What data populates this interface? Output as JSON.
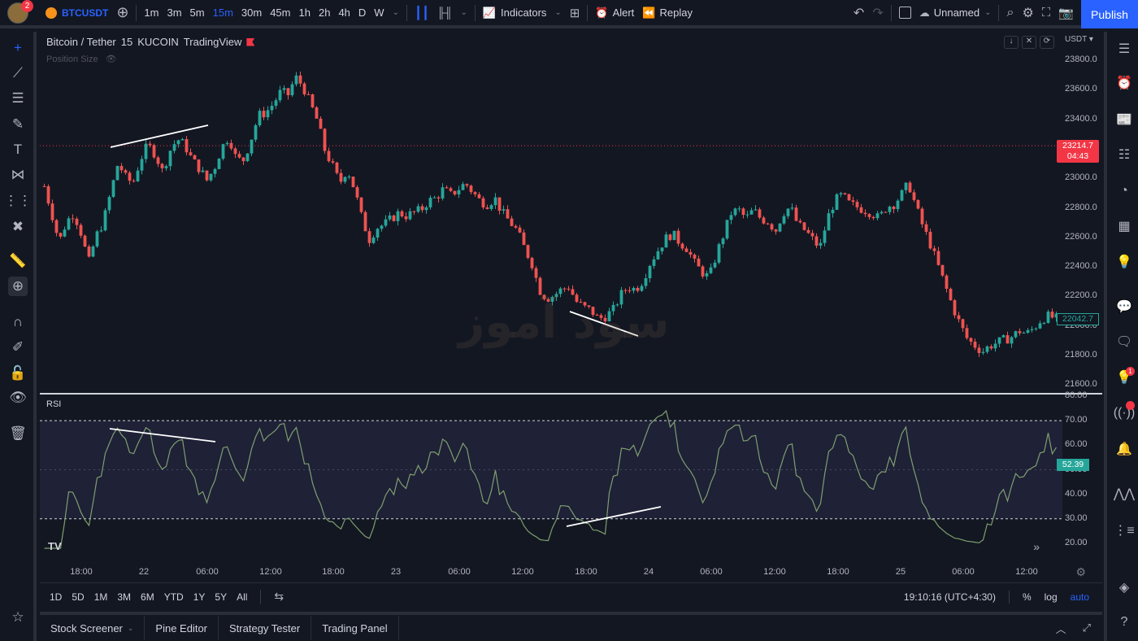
{
  "topbar": {
    "avatar_badge": "2",
    "symbol": "BTCUSDT",
    "intervals": [
      "1m",
      "3m",
      "5m",
      "15m",
      "30m",
      "45m",
      "1h",
      "2h",
      "4h",
      "D",
      "W"
    ],
    "active_interval": "15m",
    "indicators_label": "Indicators",
    "alert_label": "Alert",
    "replay_label": "Replay",
    "layout_name": "Unnamed",
    "publish_label": "Publish"
  },
  "legend": {
    "pair": "Bitcoin / Tether",
    "interval": "15",
    "exchange": "KUCOIN",
    "source": "TradingView",
    "position_size": "Position Size"
  },
  "currency": "USDT",
  "watermark": "سود آموز",
  "price_axis": [
    "23800.0",
    "23600.0",
    "23400.0",
    "23200.0",
    "23000.0",
    "22800.0",
    "22600.0",
    "22400.0",
    "22200.0",
    "22000.0",
    "21800.0",
    "21600.0"
  ],
  "last_price": {
    "value": "23214.7",
    "countdown": "04:43",
    "color": "#f23645"
  },
  "cross_price": {
    "value": "22042.7",
    "color": "#26a69a"
  },
  "rsi": {
    "label": "RSI",
    "axis": [
      "80.00",
      "70.00",
      "60.00",
      "50.00",
      "40.00",
      "30.00",
      "20.00"
    ],
    "value": "52.39",
    "upper": 70,
    "lower": 30
  },
  "time_axis": [
    "18:00",
    "22",
    "06:00",
    "12:00",
    "18:00",
    "23",
    "06:00",
    "12:00",
    "18:00",
    "24",
    "06:00",
    "12:00",
    "18:00",
    "25",
    "06:00",
    "12:00"
  ],
  "range_buttons": [
    "1D",
    "5D",
    "1M",
    "3M",
    "6M",
    "YTD",
    "1Y",
    "5Y",
    "All"
  ],
  "clock": "19:10:16 (UTC+4:30)",
  "scale_options": {
    "percent": "%",
    "log": "log",
    "auto": "auto"
  },
  "bottom_tabs": [
    "Stock Screener",
    "Pine Editor",
    "Strategy Tester",
    "Trading Panel"
  ],
  "right_badge": "1",
  "colors": {
    "up": "#26a69a",
    "down": "#ef5350",
    "rsi_line": "#7e9f6e",
    "rsi_band": "#2a2948",
    "accent": "#2962ff"
  },
  "chart_data": {
    "type": "candlestick",
    "ylim": [
      21600,
      23800
    ],
    "rsi_ylim": [
      15,
      80
    ],
    "close_series": [
      22940,
      22760,
      22560,
      22700,
      22760,
      22620,
      22420,
      22600,
      22700,
      22900,
      23100,
      23000,
      22960,
      23120,
      23220,
      23160,
      23040,
      23180,
      23260,
      23220,
      23120,
      23060,
      22980,
      23060,
      23200,
      23280,
      23120,
      23120,
      23260,
      23420,
      23440,
      23500,
      23580,
      23560,
      23680,
      23620,
      23500,
      23380,
      23180,
      23080,
      22960,
      23060,
      22920,
      22720,
      22580,
      22660,
      22680,
      22720,
      22760,
      22740,
      22760,
      22780,
      22840,
      22860,
      22920,
      22880,
      22920,
      22960,
      22900,
      22840,
      22820,
      22860,
      22760,
      22700,
      22640,
      22520,
      22420,
      22240,
      22180,
      22200,
      22240,
      22260,
      22160,
      22120,
      22100,
      22040,
      22060,
      22100,
      22200,
      22260,
      22240,
      22300,
      22420,
      22500,
      22580,
      22620,
      22560,
      22520,
      22420,
      22360,
      22320,
      22480,
      22620,
      22760,
      22780,
      22720,
      22780,
      22720,
      22700,
      22640,
      22760,
      22800,
      22680,
      22640,
      22580,
      22520,
      22720,
      22840,
      22880,
      22820,
      22800,
      22780,
      22760,
      22720,
      22800,
      22820,
      22880,
      22960,
      22800,
      22660,
      22540,
      22400,
      22260,
      22120,
      22000,
      21900,
      21860,
      21820,
      21860,
      21880,
      21900,
      21920,
      21960,
      21940,
      21980,
      22040,
      22060,
      22042
    ]
  }
}
